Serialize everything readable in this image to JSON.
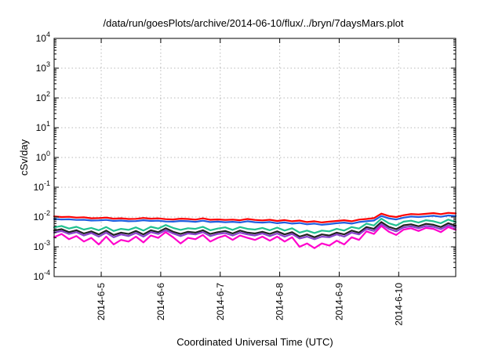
{
  "chart_data": {
    "type": "line",
    "title": "/data/run/goesPlots/archive/2014-06-10/flux/../bryn/7daysMars.plot",
    "xlabel": "Coordinated Universal Time (UTC)",
    "ylabel": "cSv/day",
    "y_scale": "log",
    "ylim": [
      0.0001,
      10000
    ],
    "y_ticks": [
      {
        "value": 0.0001,
        "base": "10",
        "exp": "-4"
      },
      {
        "value": 0.001,
        "base": "10",
        "exp": "-3"
      },
      {
        "value": 0.01,
        "base": "10",
        "exp": "-2"
      },
      {
        "value": 0.1,
        "base": "10",
        "exp": "-1"
      },
      {
        "value": 1,
        "base": "10",
        "exp": "0"
      },
      {
        "value": 10,
        "base": "10",
        "exp": "1"
      },
      {
        "value": 100,
        "base": "10",
        "exp": "2"
      },
      {
        "value": 1000,
        "base": "10",
        "exp": "3"
      },
      {
        "value": 10000,
        "base": "10",
        "exp": "4"
      }
    ],
    "xlim": [
      "2014-06-04 05:00",
      "2014-06-10 23:00"
    ],
    "x_ticks": [
      {
        "value": "2014-06-05 00:00",
        "label": "2014-6-5"
      },
      {
        "value": "2014-06-06 00:00",
        "label": "2014-6-6"
      },
      {
        "value": "2014-06-07 00:00",
        "label": "2014-6-7"
      },
      {
        "value": "2014-06-08 00:00",
        "label": "2014-6-8"
      },
      {
        "value": "2014-06-09 00:00",
        "label": "2014-6-9"
      },
      {
        "value": "2014-06-10 00:00",
        "label": "2014-6-10"
      }
    ],
    "grid": true,
    "x_points": [
      "2014-06-04 05:00",
      "2014-06-04 08:00",
      "2014-06-04 11:00",
      "2014-06-04 14:00",
      "2014-06-04 17:00",
      "2014-06-04 20:00",
      "2014-06-04 23:00",
      "2014-06-05 02:00",
      "2014-06-05 05:00",
      "2014-06-05 08:00",
      "2014-06-05 11:00",
      "2014-06-05 14:00",
      "2014-06-05 17:00",
      "2014-06-05 20:00",
      "2014-06-05 23:00",
      "2014-06-06 02:00",
      "2014-06-06 05:00",
      "2014-06-06 08:00",
      "2014-06-06 11:00",
      "2014-06-06 14:00",
      "2014-06-06 17:00",
      "2014-06-06 20:00",
      "2014-06-06 23:00",
      "2014-06-07 02:00",
      "2014-06-07 05:00",
      "2014-06-07 08:00",
      "2014-06-07 11:00",
      "2014-06-07 14:00",
      "2014-06-07 17:00",
      "2014-06-07 20:00",
      "2014-06-07 23:00",
      "2014-06-08 02:00",
      "2014-06-08 05:00",
      "2014-06-08 08:00",
      "2014-06-08 11:00",
      "2014-06-08 14:00",
      "2014-06-08 17:00",
      "2014-06-08 20:00",
      "2014-06-08 23:00",
      "2014-06-09 02:00",
      "2014-06-09 05:00",
      "2014-06-09 08:00",
      "2014-06-09 11:00",
      "2014-06-09 14:00",
      "2014-06-09 17:00",
      "2014-06-09 20:00",
      "2014-06-09 23:00",
      "2014-06-10 02:00",
      "2014-06-10 05:00",
      "2014-06-10 08:00",
      "2014-06-10 11:00",
      "2014-06-10 14:00",
      "2014-06-10 17:00",
      "2014-06-10 20:00",
      "2014-06-10 23:00"
    ],
    "series": [
      {
        "color": "#ff0000",
        "values": [
          0.0105,
          0.01,
          0.0102,
          0.0096,
          0.0098,
          0.0091,
          0.0092,
          0.0096,
          0.0088,
          0.0091,
          0.0086,
          0.0087,
          0.0093,
          0.0088,
          0.009,
          0.0085,
          0.0083,
          0.0088,
          0.0086,
          0.0082,
          0.009,
          0.0081,
          0.0083,
          0.008,
          0.0082,
          0.0078,
          0.0086,
          0.008,
          0.0077,
          0.0081,
          0.0074,
          0.0079,
          0.0072,
          0.0076,
          0.0068,
          0.0072,
          0.0066,
          0.007,
          0.0074,
          0.0078,
          0.0072,
          0.0082,
          0.0086,
          0.0092,
          0.013,
          0.0108,
          0.01,
          0.0115,
          0.0126,
          0.0122,
          0.0128,
          0.0135,
          0.0125,
          0.0138,
          0.0132
        ]
      },
      {
        "color": "#1f5fe0",
        "values": [
          0.0086,
          0.0083,
          0.0084,
          0.008,
          0.0081,
          0.0076,
          0.0077,
          0.008,
          0.0074,
          0.0076,
          0.0072,
          0.0073,
          0.0078,
          0.0074,
          0.0075,
          0.0071,
          0.007,
          0.0074,
          0.0072,
          0.0069,
          0.0075,
          0.0068,
          0.007,
          0.0067,
          0.0069,
          0.0066,
          0.0072,
          0.0067,
          0.0065,
          0.0068,
          0.0062,
          0.0066,
          0.006,
          0.0063,
          0.0057,
          0.006,
          0.0055,
          0.0058,
          0.0062,
          0.0065,
          0.006,
          0.0068,
          0.0072,
          0.0076,
          0.0108,
          0.009,
          0.0083,
          0.0095,
          0.0104,
          0.01,
          0.0105,
          0.011,
          0.0102,
          0.0113,
          0.0108
        ]
      },
      {
        "color": "#20c090",
        "values": [
          0.0045,
          0.005,
          0.0041,
          0.0047,
          0.0038,
          0.0043,
          0.0036,
          0.0046,
          0.0034,
          0.004,
          0.0037,
          0.0045,
          0.0035,
          0.0047,
          0.0041,
          0.0054,
          0.0043,
          0.0037,
          0.0042,
          0.004,
          0.0047,
          0.0036,
          0.0041,
          0.0045,
          0.0037,
          0.0046,
          0.004,
          0.0038,
          0.0043,
          0.0036,
          0.0044,
          0.0035,
          0.0042,
          0.003,
          0.0035,
          0.0029,
          0.0035,
          0.0033,
          0.004,
          0.0035,
          0.0046,
          0.0041,
          0.006,
          0.0052,
          0.0088,
          0.0062,
          0.0052,
          0.007,
          0.0075,
          0.0065,
          0.0078,
          0.0072,
          0.0062,
          0.0082,
          0.0068
        ]
      },
      {
        "color": "#222222",
        "values": [
          0.0035,
          0.0039,
          0.0031,
          0.0036,
          0.0028,
          0.0033,
          0.0026,
          0.0035,
          0.0025,
          0.003,
          0.0027,
          0.0034,
          0.0026,
          0.0036,
          0.0031,
          0.0042,
          0.0032,
          0.0027,
          0.0032,
          0.003,
          0.0036,
          0.0027,
          0.0031,
          0.0034,
          0.0028,
          0.0035,
          0.003,
          0.0028,
          0.0032,
          0.0027,
          0.0033,
          0.0026,
          0.0031,
          0.0022,
          0.0026,
          0.0021,
          0.0026,
          0.0024,
          0.003,
          0.0026,
          0.0035,
          0.003,
          0.0046,
          0.004,
          0.0068,
          0.0047,
          0.0039,
          0.0053,
          0.0057,
          0.0049,
          0.0059,
          0.0055,
          0.0046,
          0.0062,
          0.0051
        ]
      },
      {
        "color": "#8844cc",
        "values": [
          0.003,
          0.0034,
          0.0027,
          0.0031,
          0.0024,
          0.0029,
          0.0022,
          0.003,
          0.0021,
          0.0026,
          0.0023,
          0.0029,
          0.0022,
          0.0031,
          0.0027,
          0.0036,
          0.0028,
          0.0023,
          0.0028,
          0.0026,
          0.0031,
          0.0023,
          0.0027,
          0.0029,
          0.0024,
          0.003,
          0.0026,
          0.0024,
          0.0028,
          0.0023,
          0.0028,
          0.0022,
          0.0027,
          0.0019,
          0.0022,
          0.0018,
          0.0022,
          0.0021,
          0.0026,
          0.0022,
          0.003,
          0.0026,
          0.004,
          0.0034,
          0.0058,
          0.004,
          0.0033,
          0.0045,
          0.0049,
          0.0042,
          0.005,
          0.0047,
          0.0039,
          0.0053,
          0.0044
        ]
      },
      {
        "color": "#ff00cc",
        "values": [
          0.0021,
          0.0027,
          0.0018,
          0.0023,
          0.0015,
          0.002,
          0.0012,
          0.0022,
          0.0012,
          0.0017,
          0.0015,
          0.0022,
          0.0014,
          0.0024,
          0.002,
          0.0031,
          0.0021,
          0.0013,
          0.002,
          0.0018,
          0.0025,
          0.0015,
          0.002,
          0.0024,
          0.0017,
          0.0024,
          0.002,
          0.0017,
          0.0022,
          0.0016,
          0.0022,
          0.0015,
          0.0021,
          0.001,
          0.0013,
          0.0009,
          0.0013,
          0.0011,
          0.0016,
          0.0012,
          0.0021,
          0.0017,
          0.0033,
          0.0027,
          0.005,
          0.0032,
          0.0025,
          0.0038,
          0.0042,
          0.0034,
          0.0043,
          0.004,
          0.0031,
          0.0046,
          0.0037
        ]
      }
    ]
  }
}
